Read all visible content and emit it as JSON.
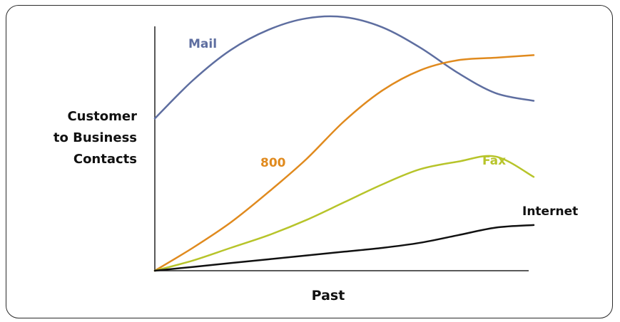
{
  "chart_data": {
    "type": "line",
    "title": "",
    "ylabel_lines": [
      "Customer",
      "to Business",
      "Contacts"
    ],
    "xlabel": "Past",
    "grid": false,
    "legend": "inline-labels",
    "xlim": [
      0,
      100
    ],
    "ylim": [
      0,
      100
    ],
    "x": [
      0,
      10,
      20,
      30,
      40,
      50,
      60,
      70,
      80,
      90,
      100
    ],
    "series": [
      {
        "name": "Mail",
        "color": "#5e6ea0",
        "values": [
          60,
          75,
          87,
          95,
          99.5,
          100,
          96,
          88,
          78,
          70,
          67
        ]
      },
      {
        "name": "800",
        "color": "#e08a1e",
        "values": [
          0,
          9,
          19,
          31,
          44,
          59,
          71,
          79,
          83,
          84,
          85
        ]
      },
      {
        "name": "Fax",
        "color": "#b7c42a",
        "values": [
          0,
          4,
          9,
          14,
          20,
          27,
          34,
          40,
          43,
          45,
          37
        ]
      },
      {
        "name": "Internet",
        "color": "#111111",
        "values": [
          0,
          1.5,
          3,
          4.5,
          6,
          7.5,
          9,
          11,
          14,
          17,
          18
        ]
      }
    ]
  }
}
